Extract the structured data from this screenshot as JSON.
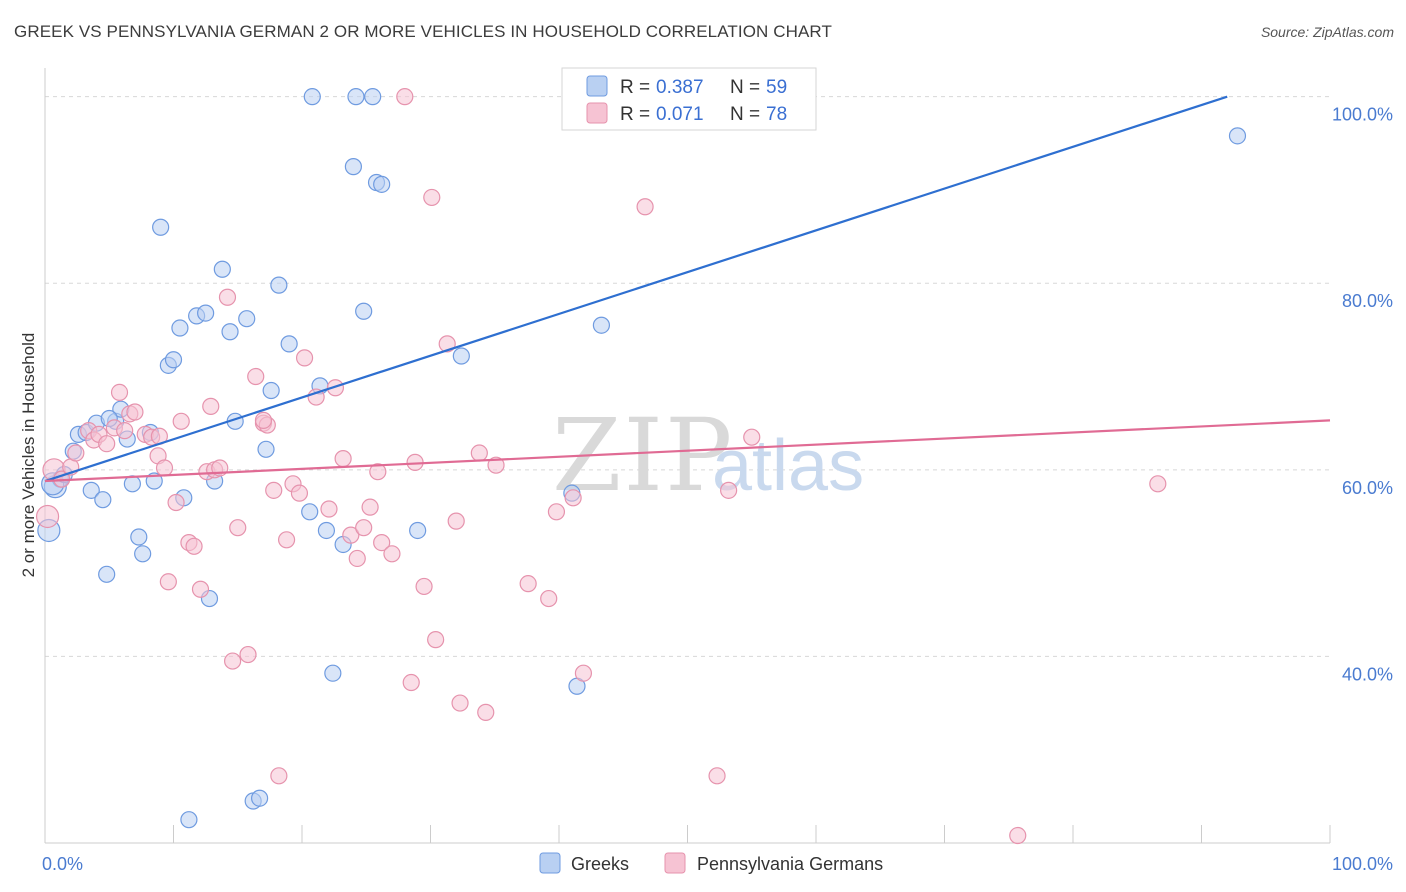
{
  "title": "GREEK VS PENNSYLVANIA GERMAN 2 OR MORE VEHICLES IN HOUSEHOLD CORRELATION CHART",
  "source": "Source: ZipAtlas.com",
  "watermark": {
    "zip": "ZIP",
    "atlas": "atlas"
  },
  "colors": {
    "greeks_fill": "#b9d0f2",
    "greeks_stroke": "#6f9be0",
    "greeks_line": "#2e6fd0",
    "pg_fill": "#f6c3d3",
    "pg_stroke": "#e693ad",
    "pg_line": "#e06b94",
    "grid": "#d8d8d8",
    "tick_text": "#4a7bd0"
  },
  "legend": {
    "greeks": {
      "r_label": "R =",
      "r_value": "0.387",
      "n_label": "N =",
      "n_value": "59"
    },
    "pg": {
      "r_label": "R =",
      "r_value": "0.071",
      "n_label": "N =",
      "n_value": "78"
    }
  },
  "bottom_legend": {
    "greeks": "Greeks",
    "pg": "Pennsylvania Germans"
  },
  "chart_data": {
    "type": "scatter",
    "title": "GREEK VS PENNSYLVANIA GERMAN 2 OR MORE VEHICLES IN HOUSEHOLD CORRELATION CHART",
    "xlabel": "",
    "ylabel": "2 or more Vehicles in Household",
    "xlim": [
      0,
      100
    ],
    "ylim": [
      20,
      102
    ],
    "x_tick_labels": [
      "0.0%",
      "100.0%"
    ],
    "y_ticks": [
      40,
      60,
      80,
      100
    ],
    "y_tick_labels": [
      "40.0%",
      "60.0%",
      "80.0%",
      "100.0%"
    ],
    "grid": true,
    "legend_placement": "top-center",
    "series": [
      {
        "name": "Greeks",
        "trend": {
          "x": [
            0,
            92
          ],
          "y": [
            58.8,
            100
          ]
        },
        "points": [
          [
            0.3,
            53.5
          ],
          [
            0.8,
            58.2
          ],
          [
            1.2,
            59.0
          ],
          [
            2.2,
            62.0
          ],
          [
            2.6,
            63.8
          ],
          [
            3.2,
            64.0
          ],
          [
            3.6,
            57.8
          ],
          [
            4.0,
            65.0
          ],
          [
            4.5,
            56.8
          ],
          [
            5.5,
            65.2
          ],
          [
            5.9,
            66.5
          ],
          [
            6.4,
            63.3
          ],
          [
            6.8,
            58.5
          ],
          [
            7.3,
            52.8
          ],
          [
            7.6,
            51.0
          ],
          [
            8.2,
            64.0
          ],
          [
            8.5,
            58.8
          ],
          [
            9.0,
            86.0
          ],
          [
            9.6,
            71.2
          ],
          [
            10.0,
            71.8
          ],
          [
            10.5,
            75.2
          ],
          [
            10.8,
            57.0
          ],
          [
            11.2,
            22.5
          ],
          [
            11.8,
            76.5
          ],
          [
            12.5,
            76.8
          ],
          [
            12.8,
            46.2
          ],
          [
            13.2,
            58.8
          ],
          [
            13.8,
            81.5
          ],
          [
            14.4,
            74.8
          ],
          [
            14.8,
            65.2
          ],
          [
            15.7,
            76.2
          ],
          [
            16.2,
            24.5
          ],
          [
            16.7,
            24.8
          ],
          [
            17.2,
            62.2
          ],
          [
            17.6,
            68.5
          ],
          [
            18.2,
            79.8
          ],
          [
            19.0,
            73.5
          ],
          [
            20.6,
            55.5
          ],
          [
            20.8,
            100.0
          ],
          [
            21.4,
            69.0
          ],
          [
            21.9,
            53.5
          ],
          [
            22.4,
            38.2
          ],
          [
            23.2,
            52.0
          ],
          [
            24.0,
            92.5
          ],
          [
            24.2,
            100.0
          ],
          [
            24.8,
            77.0
          ],
          [
            25.5,
            100.0
          ],
          [
            25.8,
            90.8
          ],
          [
            26.2,
            90.6
          ],
          [
            29.0,
            53.5
          ],
          [
            32.4,
            72.2
          ],
          [
            41.0,
            57.5
          ],
          [
            41.4,
            36.8
          ],
          [
            43.3,
            75.5
          ],
          [
            4.8,
            48.8
          ],
          [
            5.0,
            65.5
          ],
          [
            0.6,
            58.5
          ],
          [
            1.5,
            59.5
          ],
          [
            92.8,
            95.8
          ]
        ]
      },
      {
        "name": "Pennsylvania Germans",
        "trend": {
          "x": [
            0,
            100
          ],
          "y": [
            58.8,
            65.3
          ]
        },
        "points": [
          [
            0.2,
            55.0
          ],
          [
            0.7,
            60.0
          ],
          [
            1.3,
            59.0
          ],
          [
            2.0,
            60.3
          ],
          [
            2.4,
            61.8
          ],
          [
            3.4,
            64.2
          ],
          [
            3.8,
            63.2
          ],
          [
            4.2,
            63.8
          ],
          [
            4.8,
            62.8
          ],
          [
            5.4,
            64.5
          ],
          [
            5.8,
            68.3
          ],
          [
            6.2,
            64.2
          ],
          [
            6.6,
            66.0
          ],
          [
            7.0,
            66.2
          ],
          [
            7.8,
            63.8
          ],
          [
            8.3,
            63.5
          ],
          [
            8.8,
            61.5
          ],
          [
            8.9,
            63.6
          ],
          [
            9.3,
            60.2
          ],
          [
            9.6,
            48.0
          ],
          [
            10.2,
            56.5
          ],
          [
            10.6,
            65.2
          ],
          [
            11.2,
            52.2
          ],
          [
            11.6,
            51.8
          ],
          [
            12.1,
            47.2
          ],
          [
            12.6,
            59.8
          ],
          [
            12.9,
            66.8
          ],
          [
            13.2,
            60.0
          ],
          [
            13.6,
            60.2
          ],
          [
            14.2,
            78.5
          ],
          [
            14.6,
            39.5
          ],
          [
            15.0,
            53.8
          ],
          [
            15.8,
            40.2
          ],
          [
            16.4,
            70.0
          ],
          [
            17.0,
            65.0
          ],
          [
            17.3,
            64.8
          ],
          [
            17.8,
            57.8
          ],
          [
            18.2,
            27.2
          ],
          [
            18.8,
            52.5
          ],
          [
            19.3,
            58.5
          ],
          [
            19.8,
            57.5
          ],
          [
            20.2,
            72.0
          ],
          [
            21.1,
            67.8
          ],
          [
            22.1,
            55.8
          ],
          [
            22.6,
            68.8
          ],
          [
            23.2,
            61.2
          ],
          [
            23.8,
            53.0
          ],
          [
            24.3,
            50.5
          ],
          [
            24.8,
            53.8
          ],
          [
            25.3,
            56.0
          ],
          [
            25.9,
            59.8
          ],
          [
            26.2,
            52.2
          ],
          [
            27.0,
            51.0
          ],
          [
            28.0,
            100.0
          ],
          [
            28.5,
            37.2
          ],
          [
            28.8,
            60.8
          ],
          [
            29.5,
            47.5
          ],
          [
            30.1,
            89.2
          ],
          [
            30.4,
            41.8
          ],
          [
            31.3,
            73.5
          ],
          [
            32.0,
            54.5
          ],
          [
            32.3,
            35.0
          ],
          [
            33.8,
            61.8
          ],
          [
            34.3,
            34.0
          ],
          [
            35.1,
            60.5
          ],
          [
            37.6,
            47.8
          ],
          [
            39.2,
            46.2
          ],
          [
            39.8,
            55.5
          ],
          [
            41.1,
            57.0
          ],
          [
            41.9,
            38.2
          ],
          [
            46.7,
            88.2
          ],
          [
            52.3,
            27.2
          ],
          [
            53.2,
            57.8
          ],
          [
            55.0,
            63.5
          ],
          [
            59.1,
            100.0
          ],
          [
            75.7,
            20.8
          ],
          [
            86.6,
            58.5
          ],
          [
            17.0,
            65.3
          ]
        ]
      }
    ]
  }
}
